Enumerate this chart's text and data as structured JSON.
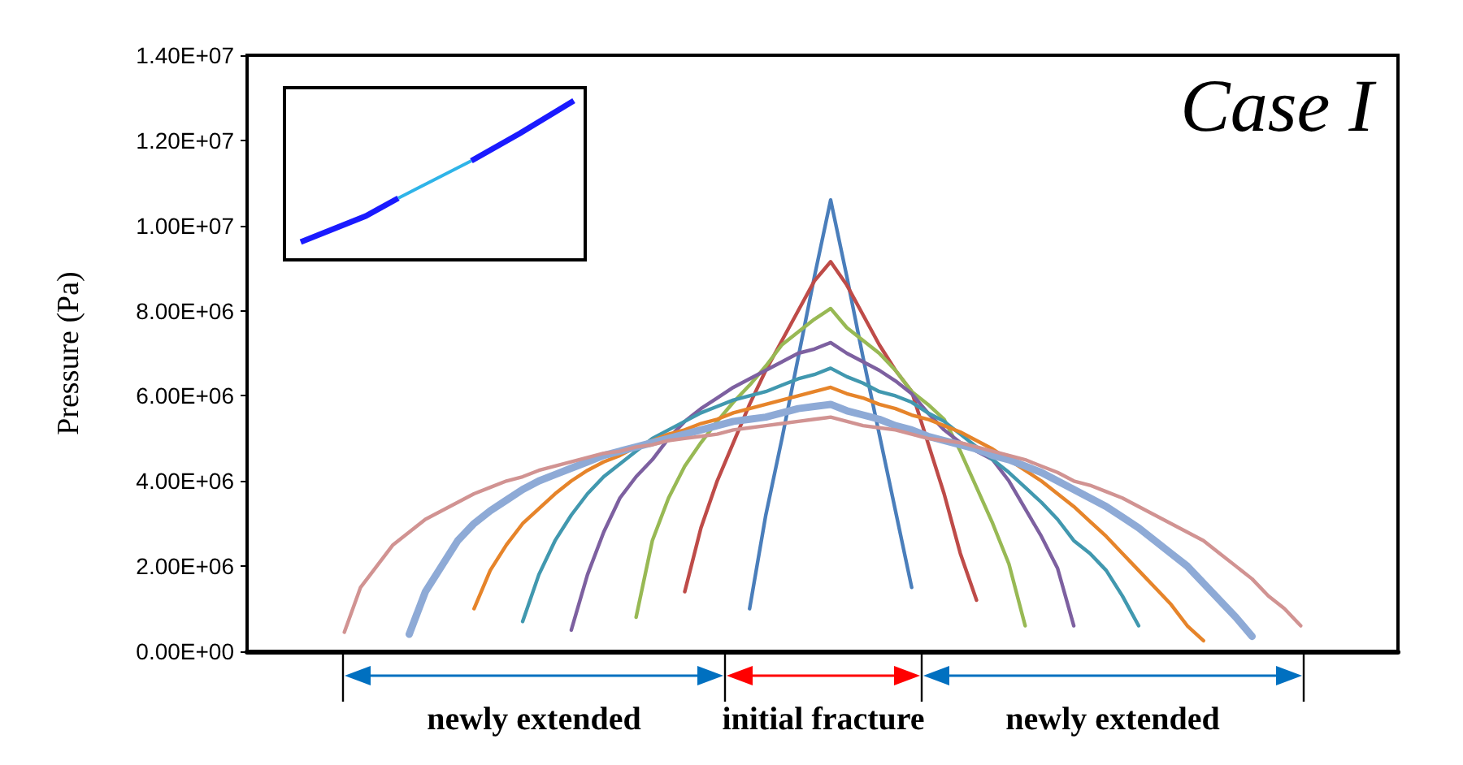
{
  "chart_data": {
    "type": "line",
    "ylabel": "Pressure (Pa)",
    "annotations": [
      "Case I",
      "newly extended",
      "initial fracture",
      "newly extended"
    ],
    "categories": [
      null,
      null,
      null,
      null,
      null,
      null,
      null,
      null,
      null,
      null,
      null,
      null,
      null,
      null,
      null,
      null,
      null,
      null,
      null,
      null,
      null,
      null,
      null,
      null,
      null,
      null,
      null,
      null,
      null,
      null,
      null,
      null,
      null,
      null,
      null,
      null,
      null,
      null,
      null,
      null,
      null,
      null,
      null,
      null,
      null,
      null,
      null,
      null,
      null,
      null,
      null,
      null,
      null,
      null,
      null,
      null,
      null,
      null,
      null,
      null,
      null,
      null,
      null,
      null,
      null,
      null,
      null,
      null,
      null,
      null,
      null,
      null
    ],
    "ylim": [
      0,
      14000000
    ],
    "yticks": [
      {
        "value": 0,
        "label": "0.00E+00"
      },
      {
        "value": 2000000,
        "label": "2.00E+06"
      },
      {
        "value": 4000000,
        "label": "4.00E+06"
      },
      {
        "value": 6000000,
        "label": "6.00E+06"
      },
      {
        "value": 8000000,
        "label": "8.00E+06"
      },
      {
        "value": 10000000,
        "label": "1.00E+07"
      },
      {
        "value": 12000000,
        "label": "1.20E+07"
      },
      {
        "value": 14000000,
        "label": "1.40E+07"
      }
    ],
    "grid": false,
    "marker": "none",
    "line_style": "solid",
    "series": [
      {
        "color": "#4a7ebb",
        "values": [
          null,
          null,
          null,
          null,
          null,
          null,
          null,
          null,
          null,
          null,
          null,
          null,
          null,
          null,
          null,
          null,
          null,
          null,
          null,
          null,
          null,
          null,
          null,
          null,
          null,
          null,
          null,
          null,
          null,
          null,
          null,
          1000000.0,
          3200000.0,
          5000000.0,
          6900000.0,
          8800000.0,
          10600000.0,
          8800000.0,
          6900000.0,
          5100000.0,
          3300000.0,
          1500000.0,
          null,
          null,
          null,
          null,
          null,
          null,
          null,
          null,
          null,
          null,
          null,
          null,
          null,
          null,
          null,
          null,
          null,
          null,
          null,
          null,
          null,
          null,
          null,
          null,
          null,
          null,
          null,
          null,
          null,
          null
        ]
      },
      {
        "color": "#be4b48",
        "values": [
          null,
          null,
          null,
          null,
          null,
          null,
          null,
          null,
          null,
          null,
          null,
          null,
          null,
          null,
          null,
          null,
          null,
          null,
          null,
          null,
          null,
          null,
          null,
          null,
          null,
          null,
          null,
          1400000.0,
          2900000.0,
          4000000.0,
          4900000.0,
          5800000.0,
          6600000.0,
          7300000.0,
          8000000.0,
          8700000.0,
          9150000.0,
          8600000.0,
          7900000.0,
          7200000.0,
          6600000.0,
          6100000.0,
          4900000.0,
          3700000.0,
          2300000.0,
          1200000.0,
          null,
          null,
          null,
          null,
          null,
          null,
          null,
          null,
          null,
          null,
          null,
          null,
          null,
          null,
          null,
          null,
          null,
          null,
          null,
          null,
          null,
          null,
          null,
          null,
          null,
          null
        ]
      },
      {
        "color": "#98b954",
        "values": [
          null,
          null,
          null,
          null,
          null,
          null,
          null,
          null,
          null,
          null,
          null,
          null,
          null,
          null,
          null,
          null,
          null,
          null,
          null,
          null,
          null,
          null,
          null,
          null,
          800000.0,
          2600000.0,
          3600000.0,
          4350000.0,
          4900000.0,
          5400000.0,
          5850000.0,
          6250000.0,
          6700000.0,
          7200000.0,
          7500000.0,
          7800000.0,
          8050000.0,
          7600000.0,
          7300000.0,
          7000000.0,
          6600000.0,
          6100000.0,
          5800000.0,
          5450000.0,
          4700000.0,
          3850000.0,
          3000000.0,
          2050000.0,
          600000.0,
          null,
          null,
          null,
          null,
          null,
          null,
          null,
          null,
          null,
          null,
          null,
          null,
          null,
          null,
          null,
          null,
          null,
          null,
          null,
          null,
          null,
          null,
          null
        ]
      },
      {
        "color": "#7d60a0",
        "values": [
          null,
          null,
          null,
          null,
          null,
          null,
          null,
          null,
          null,
          null,
          null,
          null,
          null,
          null,
          null,
          null,
          null,
          null,
          null,
          null,
          500000.0,
          1800000.0,
          2800000.0,
          3600000.0,
          4100000.0,
          4500000.0,
          5000000.0,
          5400000.0,
          5700000.0,
          5950000.0,
          6200000.0,
          6400000.0,
          6600000.0,
          6800000.0,
          7000000.0,
          7100000.0,
          7250000.0,
          7000000.0,
          6800000.0,
          6600000.0,
          6350000.0,
          6050000.0,
          5600000.0,
          5200000.0,
          4900000.0,
          4700000.0,
          4500000.0,
          4000000.0,
          3350000.0,
          2700000.0,
          1950000.0,
          600000.0,
          null,
          null,
          null,
          null,
          null,
          null,
          null,
          null,
          null,
          null,
          null,
          null,
          null,
          null,
          null,
          null,
          null,
          null,
          null,
          null
        ]
      },
      {
        "color": "#4198af",
        "values": [
          null,
          null,
          null,
          null,
          null,
          null,
          null,
          null,
          null,
          null,
          null,
          null,
          null,
          null,
          null,
          null,
          null,
          700000.0,
          1800000.0,
          2600000.0,
          3200000.0,
          3700000.0,
          4100000.0,
          4400000.0,
          4700000.0,
          5000000.0,
          5200000.0,
          5400000.0,
          5600000.0,
          5750000.0,
          5900000.0,
          6000000.0,
          6100000.0,
          6250000.0,
          6400000.0,
          6500000.0,
          6650000.0,
          6450000.0,
          6300000.0,
          6100000.0,
          6000000.0,
          5850000.0,
          5600000.0,
          5400000.0,
          5100000.0,
          4800000.0,
          4500000.0,
          4200000.0,
          3850000.0,
          3500000.0,
          3100000.0,
          2600000.0,
          2300000.0,
          1900000.0,
          1300000.0,
          600000.0,
          null,
          null,
          null,
          null,
          null,
          null,
          null,
          null,
          null,
          null,
          null,
          null,
          null,
          null,
          null,
          null
        ]
      },
      {
        "color": "#e6842a",
        "values": [
          null,
          null,
          null,
          null,
          null,
          null,
          null,
          null,
          null,
          null,
          null,
          null,
          null,
          null,
          1000000.0,
          1900000.0,
          2500000.0,
          3000000.0,
          3350000.0,
          3700000.0,
          4000000.0,
          4250000.0,
          4450000.0,
          4600000.0,
          4800000.0,
          4950000.0,
          5100000.0,
          5200000.0,
          5350000.0,
          5450000.0,
          5600000.0,
          5700000.0,
          5800000.0,
          5900000.0,
          6000000.0,
          6100000.0,
          6200000.0,
          6050000.0,
          5950000.0,
          5800000.0,
          5700000.0,
          5550000.0,
          5450000.0,
          5300000.0,
          5150000.0,
          4950000.0,
          4750000.0,
          4500000.0,
          4250000.0,
          4000000.0,
          3700000.0,
          3400000.0,
          3050000.0,
          2700000.0,
          2300000.0,
          1900000.0,
          1500000.0,
          1100000.0,
          600000.0,
          250000.0,
          null,
          null,
          null,
          null,
          null,
          null,
          null,
          null,
          null,
          null,
          null,
          null
        ]
      },
      {
        "color": "#8eaad6",
        "values": [
          null,
          null,
          null,
          null,
          null,
          null,
          null,
          null,
          null,
          null,
          400000.0,
          1400000.0,
          2000000.0,
          2600000.0,
          3000000.0,
          3300000.0,
          3550000.0,
          3800000.0,
          4000000.0,
          4150000.0,
          4300000.0,
          4450000.0,
          4600000.0,
          4700000.0,
          4800000.0,
          4900000.0,
          5000000.0,
          5100000.0,
          5200000.0,
          5300000.0,
          5400000.0,
          5450000.0,
          5500000.0,
          5600000.0,
          5700000.0,
          5750000.0,
          5800000.0,
          5650000.0,
          5550000.0,
          5450000.0,
          5300000.0,
          5200000.0,
          5050000.0,
          4950000.0,
          4850000.0,
          4750000.0,
          4600000.0,
          4500000.0,
          4350000.0,
          4200000.0,
          4000000.0,
          3800000.0,
          3600000.0,
          3400000.0,
          3150000.0,
          2900000.0,
          2600000.0,
          2300000.0,
          2000000.0,
          1600000.0,
          1200000.0,
          800000.0,
          350000.0,
          null,
          null,
          null,
          null,
          null,
          null,
          null,
          null,
          null
        ]
      },
      {
        "color": "#d19392",
        "values": [
          null,
          null,
          null,
          null,
          null,
          null,
          450000.0,
          1500000.0,
          2000000.0,
          2500000.0,
          2800000.0,
          3100000.0,
          3300000.0,
          3500000.0,
          3700000.0,
          3850000.0,
          4000000.0,
          4100000.0,
          4250000.0,
          4350000.0,
          4450000.0,
          4550000.0,
          4650000.0,
          4700000.0,
          4800000.0,
          4850000.0,
          4950000.0,
          5000000.0,
          5050000.0,
          5100000.0,
          5200000.0,
          5250000.0,
          5300000.0,
          5350000.0,
          5400000.0,
          5450000.0,
          5500000.0,
          5400000.0,
          5300000.0,
          5250000.0,
          5200000.0,
          5100000.0,
          5000000.0,
          4950000.0,
          4900000.0,
          4800000.0,
          4700000.0,
          4600000.0,
          4500000.0,
          4350000.0,
          4200000.0,
          4000000.0,
          3900000.0,
          3750000.0,
          3600000.0,
          3400000.0,
          3200000.0,
          3000000.0,
          2800000.0,
          2600000.0,
          2300000.0,
          2000000.0,
          1700000.0,
          1300000.0,
          1000000.0,
          600000.0,
          null,
          null,
          null,
          null,
          null,
          null
        ]
      }
    ]
  }
}
